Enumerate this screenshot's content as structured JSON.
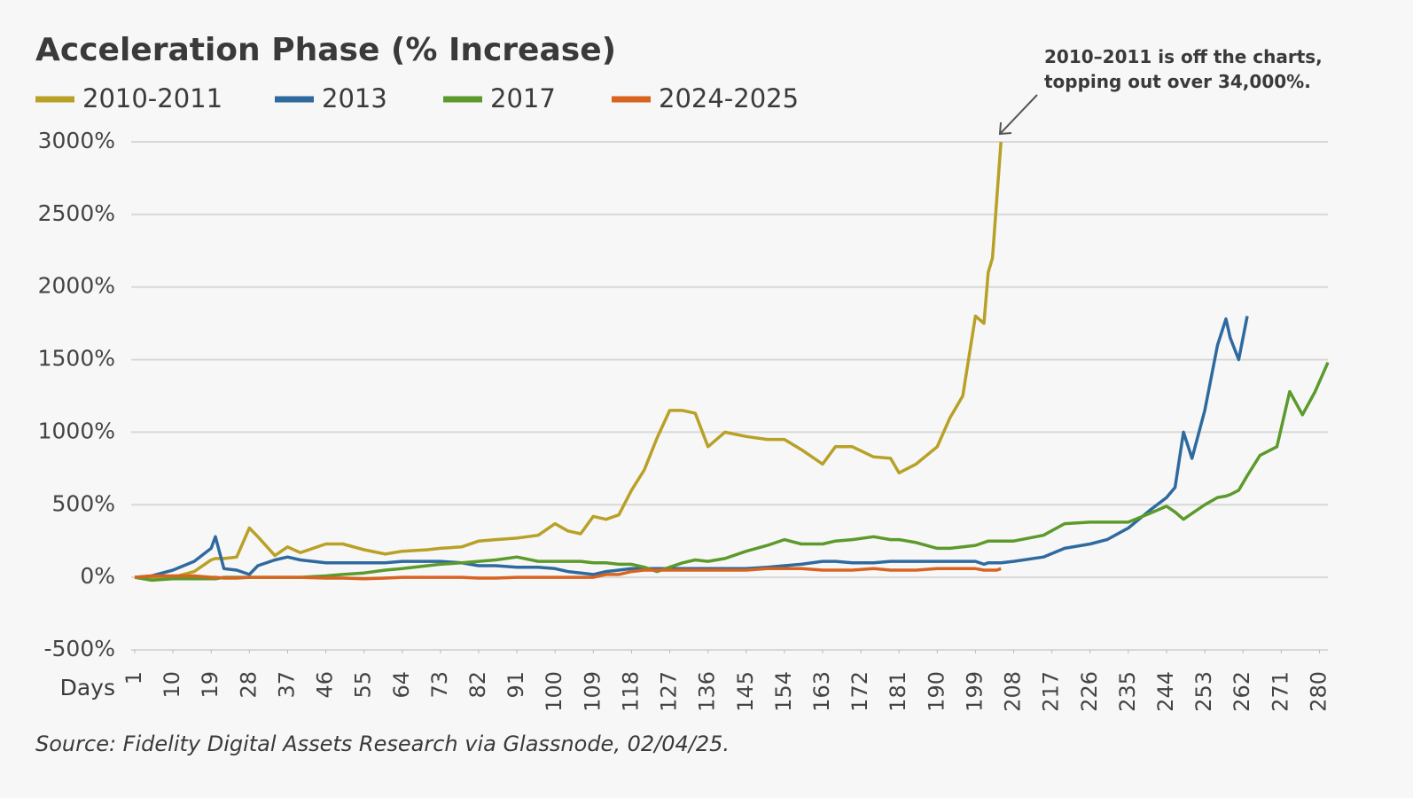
{
  "chart_data": {
    "type": "line",
    "title": "Acceleration Phase (% Increase)",
    "x_label": "Days",
    "source": "Source: Fidelity Digital Assets Research via Glassnode, 02/04/25.",
    "annotation": [
      "2010–2011 is off the charts,",
      "topping out over 34,000%."
    ],
    "xlim": [
      1,
      282
    ],
    "xticks": [
      1,
      10,
      19,
      28,
      37,
      46,
      55,
      64,
      73,
      82,
      91,
      100,
      109,
      118,
      127,
      136,
      145,
      154,
      163,
      172,
      181,
      190,
      199,
      208,
      217,
      226,
      235,
      244,
      253,
      262,
      271,
      280
    ],
    "ylim": [
      -500,
      3000
    ],
    "yticks": [
      {
        "value": -500,
        "label": "-500%"
      },
      {
        "value": 0,
        "label": "0%"
      },
      {
        "value": 500,
        "label": "500%"
      },
      {
        "value": 1000,
        "label": "1000%"
      },
      {
        "value": 1500,
        "label": "1500%"
      },
      {
        "value": 2000,
        "label": "2000%"
      },
      {
        "value": 2500,
        "label": "2500%"
      },
      {
        "value": 3000,
        "label": "3000%"
      }
    ],
    "grid": true,
    "x": [
      1,
      5,
      10,
      15,
      19,
      20,
      22,
      25,
      28,
      30,
      34,
      37,
      40,
      46,
      50,
      55,
      60,
      64,
      70,
      73,
      78,
      82,
      86,
      91,
      96,
      100,
      103,
      106,
      109,
      112,
      115,
      118,
      121,
      124,
      127,
      130,
      133,
      136,
      140,
      145,
      150,
      154,
      158,
      163,
      166,
      170,
      175,
      179,
      181,
      185,
      190,
      193,
      196,
      199,
      201,
      202,
      203,
      204,
      205,
      208,
      215,
      220,
      226,
      230,
      235,
      240,
      244,
      246,
      248,
      250,
      253,
      256,
      258,
      259,
      261,
      263,
      266,
      270,
      273,
      276,
      279,
      282
    ],
    "series": [
      {
        "name": "2010-2011",
        "color": "#b8a126",
        "values": [
          0,
          0,
          0,
          40,
          120,
          130,
          130,
          140,
          340,
          280,
          150,
          210,
          170,
          230,
          230,
          190,
          160,
          180,
          190,
          200,
          210,
          250,
          260,
          270,
          290,
          370,
          320,
          300,
          420,
          400,
          430,
          600,
          740,
          960,
          1150,
          1150,
          1130,
          900,
          1000,
          970,
          950,
          950,
          880,
          780,
          900,
          900,
          830,
          820,
          720,
          780,
          900,
          1100,
          1250,
          1800,
          1750,
          2100,
          2200,
          2600,
          3000,
          null,
          null,
          null,
          null,
          null,
          null,
          null,
          null,
          null,
          null,
          null,
          null,
          null,
          null,
          null,
          null,
          null,
          null,
          null,
          null,
          null,
          null,
          null
        ]
      },
      {
        "name": "2013",
        "color": "#2f6a9f",
        "values": [
          0,
          10,
          50,
          110,
          200,
          280,
          60,
          50,
          20,
          80,
          120,
          140,
          120,
          100,
          100,
          100,
          100,
          110,
          110,
          110,
          100,
          80,
          80,
          70,
          70,
          60,
          40,
          30,
          20,
          40,
          50,
          60,
          60,
          60,
          60,
          60,
          60,
          60,
          60,
          60,
          70,
          80,
          90,
          110,
          110,
          100,
          100,
          110,
          110,
          110,
          110,
          110,
          110,
          110,
          90,
          100,
          100,
          100,
          100,
          110,
          140,
          200,
          230,
          260,
          340,
          460,
          550,
          620,
          1000,
          820,
          1150,
          1600,
          1780,
          1650,
          1500,
          1800,
          null,
          null,
          null,
          null,
          null,
          null
        ]
      },
      {
        "name": "2017",
        "color": "#5c9a2c",
        "values": [
          0,
          -20,
          -10,
          -10,
          -10,
          -10,
          0,
          0,
          0,
          0,
          0,
          0,
          0,
          10,
          20,
          30,
          50,
          60,
          80,
          90,
          100,
          110,
          120,
          140,
          110,
          110,
          110,
          110,
          100,
          100,
          90,
          90,
          70,
          40,
          70,
          100,
          120,
          110,
          130,
          180,
          220,
          260,
          230,
          230,
          250,
          260,
          280,
          260,
          260,
          240,
          200,
          200,
          210,
          220,
          240,
          250,
          250,
          250,
          250,
          250,
          290,
          370,
          380,
          380,
          380,
          440,
          490,
          450,
          400,
          440,
          500,
          550,
          560,
          570,
          600,
          700,
          840,
          900,
          1280,
          1120,
          1280,
          1480
        ]
      },
      {
        "name": "2024-2025",
        "color": "#d8641f",
        "values": [
          0,
          10,
          10,
          10,
          0,
          0,
          -5,
          -5,
          0,
          0,
          0,
          0,
          0,
          -5,
          -5,
          -10,
          -5,
          0,
          0,
          0,
          0,
          -5,
          -5,
          0,
          0,
          0,
          0,
          0,
          0,
          20,
          20,
          40,
          50,
          50,
          50,
          50,
          50,
          50,
          50,
          50,
          60,
          60,
          60,
          50,
          50,
          50,
          60,
          50,
          50,
          50,
          60,
          60,
          60,
          60,
          50,
          50,
          50,
          50,
          60,
          null,
          null,
          null,
          null,
          null,
          null,
          null,
          null,
          null,
          null,
          null,
          null,
          null,
          null,
          null,
          null,
          null,
          null,
          null,
          null,
          null,
          null,
          null
        ]
      }
    ]
  }
}
